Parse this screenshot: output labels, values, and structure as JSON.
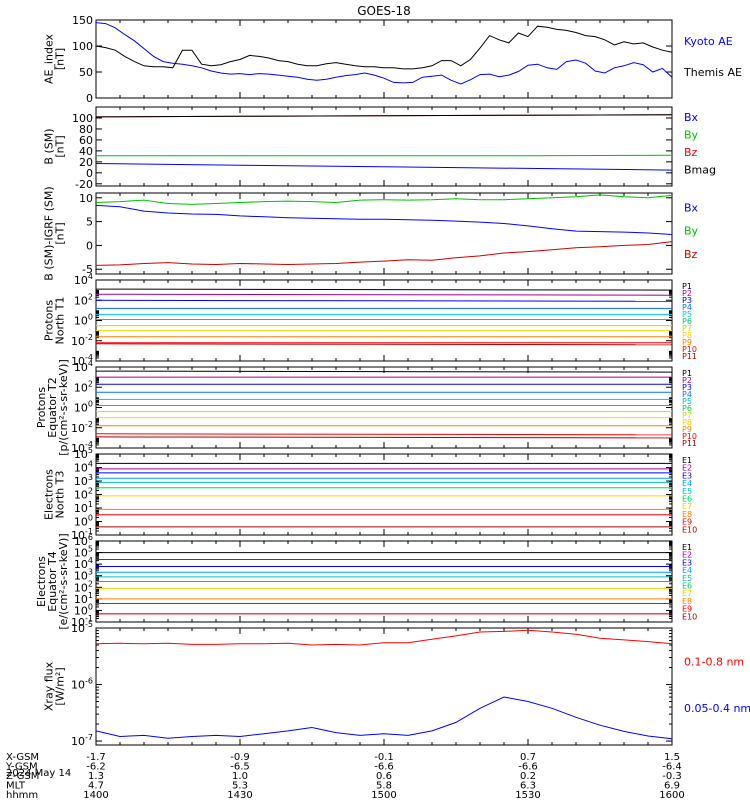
{
  "title": "GOES-18",
  "date": "2024 May 14",
  "time_axis": {
    "ticks": [
      "1400",
      "1430",
      "1500",
      "1530",
      "1600"
    ],
    "rows": [
      {
        "label": "X-GSM",
        "values": [
          "-1.7",
          "-0.9",
          "-0.1",
          "0.7",
          "1.5"
        ]
      },
      {
        "label": "Y-GSM",
        "values": [
          "-6.2",
          "-6.5",
          "-6.6",
          "-6.6",
          "-6.4"
        ]
      },
      {
        "label": "Z-GSM",
        "values": [
          "1.3",
          "1.0",
          "0.6",
          "0.2",
          "-0.3"
        ]
      },
      {
        "label": "MLT",
        "values": [
          "4.7",
          "5.3",
          "5.8",
          "6.3",
          "6.9"
        ]
      },
      {
        "label": "hhmm",
        "values": [
          "1400",
          "1430",
          "1500",
          "1530",
          "1600"
        ]
      }
    ]
  },
  "chart_data": [
    {
      "type": "line",
      "ylabel": [
        "AE_index",
        "[nT]"
      ],
      "ylim": [
        0,
        150
      ],
      "yticks": [
        "0",
        "50",
        "100",
        "150"
      ],
      "x": [
        1400,
        1402,
        1404,
        1406,
        1408,
        1410,
        1412,
        1414,
        1416,
        1418,
        1420,
        1422,
        1424,
        1426,
        1428,
        1430,
        1432,
        1434,
        1436,
        1438,
        1440,
        1442,
        1444,
        1446,
        1448,
        1450,
        1452,
        1454,
        1456,
        1458,
        1500,
        1502,
        1504,
        1506,
        1508,
        1510,
        1512,
        1514,
        1516,
        1518,
        1520,
        1522,
        1524,
        1526,
        1528,
        1530,
        1532,
        1534,
        1536,
        1538,
        1540,
        1542,
        1544,
        1546,
        1548,
        1550,
        1552,
        1554,
        1556,
        1558,
        1600
      ],
      "series": [
        {
          "name": "Kyoto AE",
          "color": "#0000ff",
          "values": [
            145,
            143,
            135,
            122,
            110,
            95,
            80,
            70,
            67,
            65,
            62,
            58,
            52,
            48,
            46,
            47,
            45,
            47,
            46,
            44,
            42,
            40,
            36,
            34,
            36,
            40,
            43,
            45,
            48,
            44,
            38,
            30,
            29,
            30,
            40,
            42,
            44,
            34,
            27,
            35,
            45,
            46,
            41,
            44,
            51,
            63,
            65,
            58,
            55,
            70,
            73,
            67,
            52,
            48,
            58,
            62,
            68,
            64,
            50,
            57,
            40
          ]
        },
        {
          "name": "Themis AE",
          "color": "#000000",
          "values": [
            100,
            97,
            92,
            80,
            70,
            62,
            60,
            60,
            58,
            92,
            92,
            65,
            62,
            64,
            70,
            74,
            82,
            80,
            77,
            72,
            70,
            65,
            62,
            62,
            66,
            68,
            65,
            62,
            60,
            60,
            58,
            58,
            56,
            56,
            58,
            62,
            72,
            72,
            62,
            74,
            96,
            120,
            112,
            106,
            125,
            118,
            138,
            136,
            132,
            130,
            126,
            120,
            118,
            112,
            102,
            108,
            104,
            106,
            98,
            92,
            88
          ]
        }
      ]
    },
    {
      "type": "line",
      "ylabel": [
        "B (SM)",
        "[nT]"
      ],
      "ylim": [
        -24,
        120
      ],
      "yticks": [
        "-20",
        "0",
        "20",
        "40",
        "60",
        "80",
        "100"
      ],
      "x": [
        1400,
        1430,
        1500,
        1530,
        1600
      ],
      "series": [
        {
          "name": "Bx",
          "color": "#0000ff",
          "values": [
            17,
            14,
            11,
            8,
            5
          ]
        },
        {
          "name": "By",
          "color": "#00c000",
          "values": [
            31,
            31,
            31,
            31,
            32
          ]
        },
        {
          "name": "Bz",
          "color": "#ff0000",
          "values": [
            102,
            103,
            104,
            105,
            106
          ]
        },
        {
          "name": "Bmag",
          "color": "#000000",
          "values": [
            102,
            103,
            104,
            105,
            106
          ]
        }
      ]
    },
    {
      "type": "line",
      "ylabel": [
        "B (SM)-IGRF (SM)",
        "[nT]"
      ],
      "ylim": [
        -6,
        11
      ],
      "yticks": [
        "-5",
        "0",
        "5",
        "10"
      ],
      "x": [
        1400,
        1405,
        1410,
        1415,
        1420,
        1425,
        1430,
        1435,
        1440,
        1445,
        1450,
        1455,
        1500,
        1505,
        1510,
        1515,
        1520,
        1525,
        1530,
        1535,
        1540,
        1545,
        1550,
        1555,
        1600
      ],
      "series": [
        {
          "name": "Bx",
          "color": "#0000ff",
          "values": [
            8.4,
            8.1,
            7.2,
            6.8,
            6.6,
            6.5,
            6.2,
            6.0,
            5.8,
            5.7,
            5.6,
            5.5,
            5.5,
            5.4,
            5.3,
            5.1,
            4.9,
            4.6,
            4.1,
            3.5,
            3.0,
            2.9,
            2.8,
            2.6,
            2.3
          ]
        },
        {
          "name": "By",
          "color": "#00c000",
          "values": [
            9.0,
            9.2,
            9.5,
            8.8,
            8.6,
            8.8,
            9.0,
            9.2,
            9.3,
            9.2,
            9.0,
            9.5,
            9.6,
            9.5,
            9.6,
            9.8,
            9.6,
            9.6,
            9.8,
            10.0,
            10.2,
            10.6,
            10.2,
            10.0,
            10.5
          ]
        },
        {
          "name": "Bz",
          "color": "#cc0000",
          "values": [
            -4.2,
            -4.1,
            -3.8,
            -3.6,
            -3.9,
            -4.0,
            -3.8,
            -3.9,
            -4.0,
            -3.9,
            -3.8,
            -3.5,
            -3.3,
            -3.0,
            -3.1,
            -2.6,
            -2.2,
            -1.6,
            -1.3,
            -0.9,
            -0.5,
            -0.3,
            0.0,
            0.2,
            0.8
          ]
        }
      ]
    },
    {
      "type": "line",
      "ylabel": [
        "Protons",
        "North T1"
      ],
      "yscale": "log",
      "ylim": [
        -4,
        4
      ],
      "yticks": [
        {
          "label": "10",
          "exp": "4",
          "v": 4
        },
        {
          "label": "10",
          "exp": "2",
          "v": 2
        },
        {
          "label": "10",
          "exp": "0",
          "v": 0
        },
        {
          "label": "10",
          "exp": "-2",
          "v": -2
        },
        {
          "label": "10",
          "exp": "-4",
          "v": -4
        }
      ],
      "x": [
        1400,
        1600
      ],
      "series": [
        {
          "name": "P1",
          "color": "#000000",
          "values": [
            3.1,
            3.0
          ]
        },
        {
          "name": "P2",
          "color": "#a000a0",
          "values": [
            2.6,
            2.5
          ]
        },
        {
          "name": "P3",
          "color": "#0000ff",
          "values": [
            2.0,
            1.9
          ]
        },
        {
          "name": "P4",
          "color": "#0070ff",
          "values": [
            1.2,
            1.2
          ]
        },
        {
          "name": "P5",
          "color": "#00c0ff",
          "values": [
            0.6,
            0.6
          ]
        },
        {
          "name": "P6",
          "color": "#00d060",
          "values": [
            0.1,
            0.1
          ]
        },
        {
          "name": "P7",
          "color": "#c0e000",
          "values": [
            -0.5,
            -0.5
          ]
        },
        {
          "name": "P8",
          "color": "#ffd000",
          "values": [
            -1.0,
            -1.0
          ]
        },
        {
          "name": "P9",
          "color": "#ff8000",
          "values": [
            -1.6,
            -1.6
          ]
        },
        {
          "name": "P10",
          "color": "#ff0000",
          "values": [
            -2.2,
            -2.2
          ]
        },
        {
          "name": "P11",
          "color": "#b00000",
          "values": [
            -2.3,
            -2.4
          ]
        }
      ]
    },
    {
      "type": "line",
      "ylabel": [
        "Protons",
        "Equator T2",
        "[p/(cm²-s-sr-keV)]"
      ],
      "yscale": "log",
      "ylim": [
        -4,
        4
      ],
      "yticks": [
        {
          "label": "10",
          "exp": "4",
          "v": 4
        },
        {
          "label": "10",
          "exp": "2",
          "v": 2
        },
        {
          "label": "10",
          "exp": "0",
          "v": 0
        },
        {
          "label": "10",
          "exp": "-2",
          "v": -2
        },
        {
          "label": "10",
          "exp": "-4",
          "v": -4
        }
      ],
      "x": [
        1400,
        1600
      ],
      "series": [
        {
          "name": "P1",
          "color": "#000000",
          "values": [
            3.6,
            3.5
          ]
        },
        {
          "name": "P2",
          "color": "#a000a0",
          "values": [
            3.0,
            3.0
          ]
        },
        {
          "name": "P3",
          "color": "#0000ff",
          "values": [
            2.3,
            2.3
          ]
        },
        {
          "name": "P4",
          "color": "#0070ff",
          "values": [
            1.5,
            1.5
          ]
        },
        {
          "name": "P5",
          "color": "#00c0ff",
          "values": [
            0.8,
            0.8
          ]
        },
        {
          "name": "P6",
          "color": "#00d060",
          "values": [
            0.2,
            0.2
          ]
        },
        {
          "name": "P7",
          "color": "#c0e000",
          "values": [
            -0.4,
            -0.4
          ]
        },
        {
          "name": "P8",
          "color": "#ffd000",
          "values": [
            -1.0,
            -1.0
          ]
        },
        {
          "name": "P9",
          "color": "#ff8000",
          "values": [
            -1.8,
            -1.8
          ]
        },
        {
          "name": "P10",
          "color": "#ff0000",
          "values": [
            -2.6,
            -2.7
          ]
        },
        {
          "name": "P11",
          "color": "#b00000",
          "values": [
            -2.9,
            -3.0
          ]
        }
      ]
    },
    {
      "type": "line",
      "ylabel": [
        "Electrons",
        "North T3"
      ],
      "yscale": "log",
      "ylim": [
        -1,
        5
      ],
      "yticks": [
        {
          "label": "10",
          "exp": "5",
          "v": 5
        },
        {
          "label": "10",
          "exp": "4",
          "v": 4
        },
        {
          "label": "10",
          "exp": "3",
          "v": 3
        },
        {
          "label": "10",
          "exp": "2",
          "v": 2
        },
        {
          "label": "10",
          "exp": "1",
          "v": 1
        },
        {
          "label": "10",
          "exp": "0",
          "v": 0
        },
        {
          "label": "10",
          "exp": "-1",
          "v": -1
        }
      ],
      "x": [
        1400,
        1600
      ],
      "series": [
        {
          "name": "E1",
          "color": "#000000",
          "values": [
            4.3,
            4.3
          ]
        },
        {
          "name": "E2",
          "color": "#a000a0",
          "values": [
            3.9,
            3.9
          ]
        },
        {
          "name": "E3",
          "color": "#0000ff",
          "values": [
            3.6,
            3.6
          ]
        },
        {
          "name": "E4",
          "color": "#00a0ff",
          "values": [
            3.2,
            3.2
          ]
        },
        {
          "name": "E5",
          "color": "#00c0c0",
          "values": [
            2.9,
            2.9
          ]
        },
        {
          "name": "E6",
          "color": "#00d060",
          "values": [
            2.5,
            2.5
          ]
        },
        {
          "name": "E7",
          "color": "#ffd000",
          "values": [
            1.9,
            1.9
          ]
        },
        {
          "name": "E8",
          "color": "#ff8000",
          "values": [
            0.9,
            0.9
          ]
        },
        {
          "name": "E9",
          "color": "#ff0000",
          "values": [
            0.5,
            0.5
          ]
        },
        {
          "name": "E10",
          "color": "#b00000",
          "values": [
            -0.4,
            -0.4
          ]
        }
      ]
    },
    {
      "type": "line",
      "ylabel": [
        "Electrons",
        "Equator T4",
        "[e/(cm²-s-sr-keV)]"
      ],
      "yscale": "log",
      "ylim": [
        -1,
        6
      ],
      "yticks": [
        {
          "label": "10",
          "exp": "6",
          "v": 6
        },
        {
          "label": "10",
          "exp": "5",
          "v": 5
        },
        {
          "label": "10",
          "exp": "4",
          "v": 4
        },
        {
          "label": "10",
          "exp": "3",
          "v": 3
        },
        {
          "label": "10",
          "exp": "2",
          "v": 2
        },
        {
          "label": "10",
          "exp": "1",
          "v": 1
        },
        {
          "label": "10",
          "exp": "0",
          "v": 0
        },
        {
          "label": "10",
          "exp": "-1",
          "v": -1
        }
      ],
      "x": [
        1400,
        1600
      ],
      "series": [
        {
          "name": "E1",
          "color": "#000000",
          "values": [
            5.0,
            5.0
          ]
        },
        {
          "name": "E2",
          "color": "#a000a0",
          "values": [
            4.4,
            4.4
          ]
        },
        {
          "name": "E3",
          "color": "#0000ff",
          "values": [
            3.8,
            3.8
          ]
        },
        {
          "name": "E4",
          "color": "#00a0ff",
          "values": [
            3.3,
            3.3
          ]
        },
        {
          "name": "E5",
          "color": "#00c0c0",
          "values": [
            2.9,
            2.9
          ]
        },
        {
          "name": "E6",
          "color": "#00d060",
          "values": [
            2.5,
            2.5
          ]
        },
        {
          "name": "E7",
          "color": "#ffd000",
          "values": [
            1.9,
            1.9
          ]
        },
        {
          "name": "E8",
          "color": "#ff8000",
          "values": [
            1.0,
            1.0
          ]
        },
        {
          "name": "E9",
          "color": "#ff0000",
          "values": [
            0.6,
            0.6
          ]
        },
        {
          "name": "E10",
          "color": "#b00000",
          "values": [
            -0.3,
            -0.3
          ]
        }
      ]
    },
    {
      "type": "line",
      "ylabel": [
        "Xray flux",
        "[W/m²]"
      ],
      "yscale": "log",
      "ylim": [
        -7.07,
        -5
      ],
      "yticks": [
        {
          "label": "10",
          "exp": "-5",
          "v": -5
        },
        {
          "label": "10",
          "exp": "-6",
          "v": -6
        },
        {
          "label": "10",
          "exp": "-7",
          "v": -7
        }
      ],
      "x": [
        1400,
        1405,
        1410,
        1415,
        1420,
        1425,
        1430,
        1435,
        1440,
        1445,
        1450,
        1455,
        1500,
        1505,
        1510,
        1515,
        1520,
        1525,
        1530,
        1535,
        1540,
        1545,
        1550,
        1555,
        1600
      ],
      "series": [
        {
          "name": "0.1-0.8 nm",
          "color": "#ff0000",
          "values": [
            -5.28,
            -5.27,
            -5.28,
            -5.27,
            -5.29,
            -5.29,
            -5.28,
            -5.28,
            -5.27,
            -5.3,
            -5.29,
            -5.3,
            -5.26,
            -5.26,
            -5.2,
            -5.14,
            -5.07,
            -5.06,
            -5.04,
            -5.07,
            -5.11,
            -5.18,
            -5.21,
            -5.24,
            -5.28
          ]
        },
        {
          "name": "0.05-0.4 nm",
          "color": "#0000ff",
          "values": [
            -6.82,
            -6.92,
            -6.9,
            -6.95,
            -6.92,
            -6.9,
            -6.92,
            -6.87,
            -6.82,
            -6.76,
            -6.85,
            -6.9,
            -6.87,
            -6.9,
            -6.82,
            -6.67,
            -6.42,
            -6.22,
            -6.3,
            -6.42,
            -6.58,
            -6.72,
            -6.83,
            -6.91,
            -6.96
          ]
        }
      ]
    }
  ]
}
